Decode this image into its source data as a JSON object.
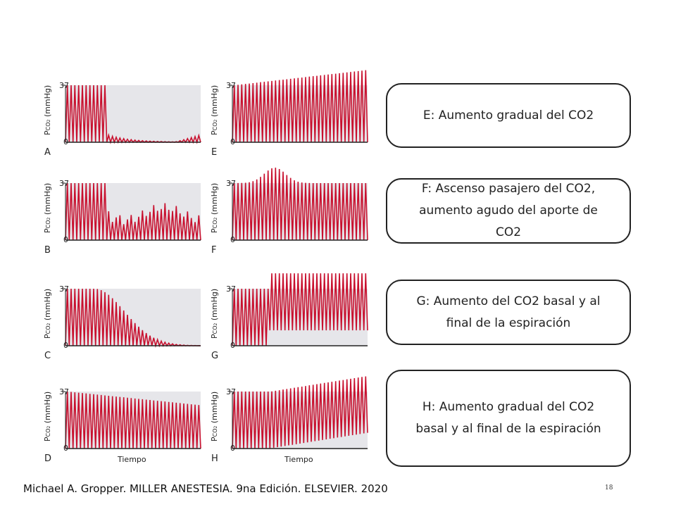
{
  "axis": {
    "ylabel": "PCO2 (mmHg)",
    "ylabel_main": "P",
    "ylabel_sub": "CO",
    "ylabel_subsub": "2",
    "ylabel_unit": "(mmHg)",
    "ytick_high": "37",
    "ytick_low": "0",
    "xlabel": "Tiempo"
  },
  "colors": {
    "trace": "#c8102e",
    "fill": "#e6e6ea",
    "axis": "#222222"
  },
  "panels": [
    {
      "letter": "A",
      "pattern": "drop-to-zero"
    },
    {
      "letter": "B",
      "pattern": "irregular-low"
    },
    {
      "letter": "C",
      "pattern": "exponential-decay"
    },
    {
      "letter": "D",
      "pattern": "gradual-decrease"
    },
    {
      "letter": "E",
      "pattern": "gradual-increase"
    },
    {
      "letter": "F",
      "pattern": "transient-rise"
    },
    {
      "letter": "G",
      "pattern": "baseline-step-up"
    },
    {
      "letter": "H",
      "pattern": "baseline-gradual-rise"
    }
  ],
  "boxes": [
    {
      "lines": [
        "E: Aumento gradual del CO2"
      ]
    },
    {
      "lines": [
        "F: Ascenso pasajero del CO2,",
        "aumento agudo del aporte de",
        "CO2"
      ]
    },
    {
      "lines": [
        "G: Aumento del CO2 basal y al",
        "final de la espiración"
      ]
    },
    {
      "lines": [
        "H: Aumento gradual del CO2",
        "basal y al final de la espiración"
      ]
    }
  ],
  "citation": "Michael A. Gropper. MILLER ANESTESIA. 9na Edición. ELSEVIER. 2020",
  "page_number": "18"
}
